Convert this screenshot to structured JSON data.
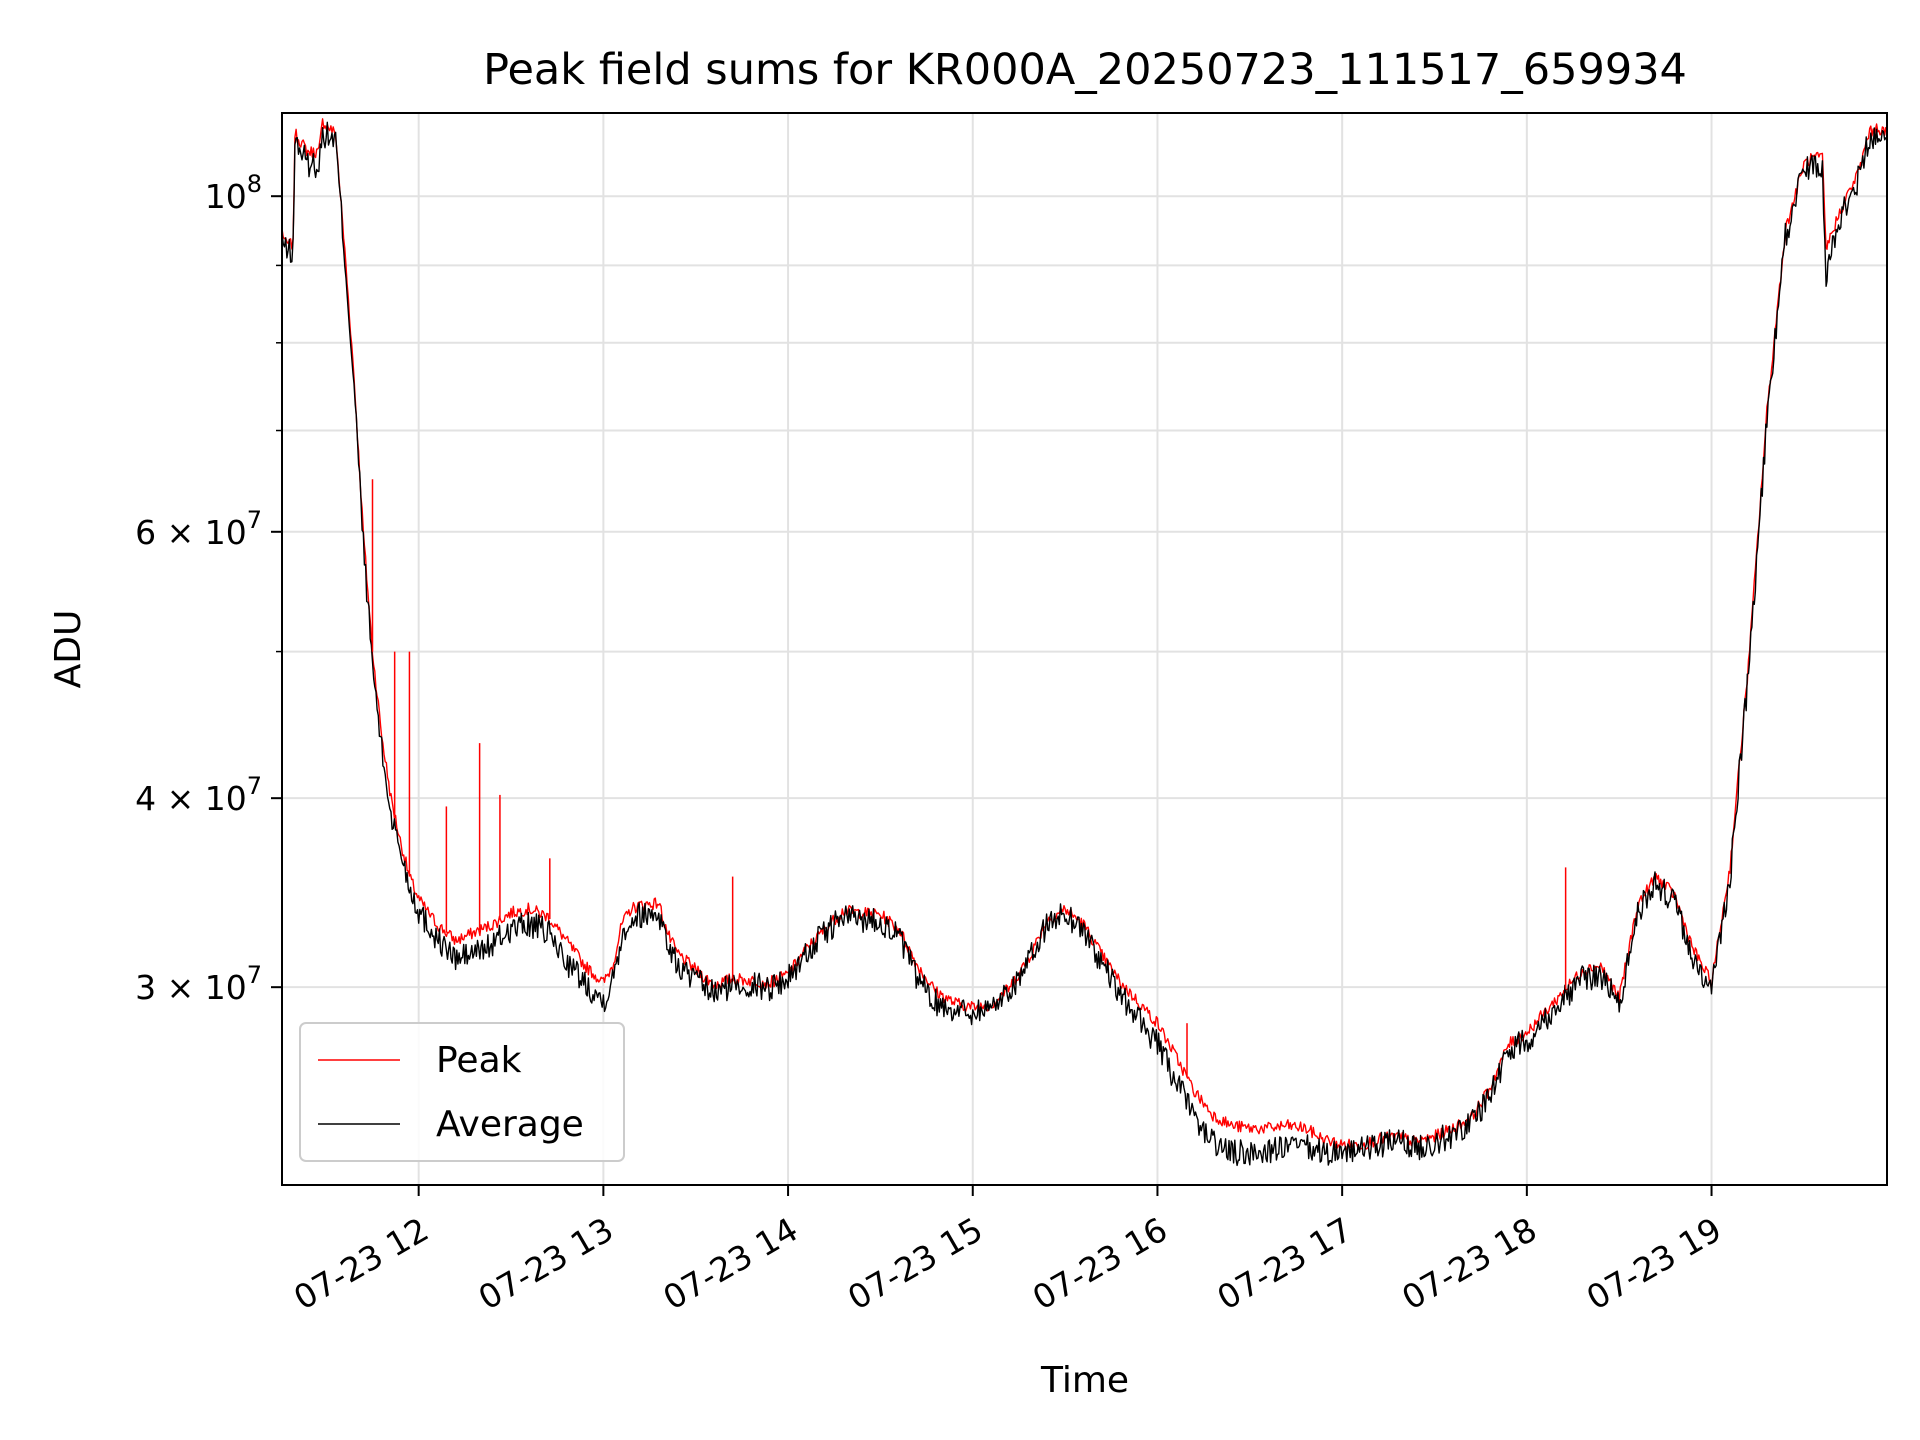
{
  "chart_data": {
    "type": "line",
    "title": "Peak field sums for KR000A_20250723_111517_659934",
    "xlabel": "Time",
    "ylabel": "ADU",
    "x_unit": "hours of day on 07-23",
    "xlim": [
      11.26,
      19.95
    ],
    "ylim": [
      22200000,
      113500000
    ],
    "yscale": "log",
    "grid": true,
    "legend_position": "lower-left",
    "x_ticks": [
      {
        "value": 12,
        "label": "07-23 12"
      },
      {
        "value": 13,
        "label": "07-23 13"
      },
      {
        "value": 14,
        "label": "07-23 14"
      },
      {
        "value": 15,
        "label": "07-23 15"
      },
      {
        "value": 16,
        "label": "07-23 16"
      },
      {
        "value": 17,
        "label": "07-23 17"
      },
      {
        "value": 18,
        "label": "07-23 18"
      },
      {
        "value": 19,
        "label": "07-23 19"
      }
    ],
    "y_major_ticks": [
      {
        "value": 30000000,
        "mantissa": "3 × 10",
        "exp": "7"
      },
      {
        "value": 40000000,
        "mantissa": "4 × 10",
        "exp": "7"
      },
      {
        "value": 60000000,
        "mantissa": "6 × 10",
        "exp": "7"
      },
      {
        "value": 100000000,
        "mantissa": "10",
        "exp": "8"
      }
    ],
    "y_minor_ticks": [
      50000000,
      70000000,
      80000000,
      90000000
    ],
    "series": [
      {
        "name": "Peak",
        "color": "#ff0000",
        "x": [
          11.26,
          11.28,
          11.32,
          11.33,
          11.4,
          11.46,
          11.48,
          11.55,
          11.6,
          11.65,
          11.7,
          11.75,
          11.8,
          11.85,
          11.9,
          11.95,
          12.0,
          12.1,
          12.2,
          12.3,
          12.4,
          12.5,
          12.6,
          12.7,
          12.8,
          12.9,
          13.0,
          13.05,
          13.1,
          13.15,
          13.2,
          13.3,
          13.35,
          13.4,
          13.5,
          13.6,
          13.7,
          13.8,
          13.9,
          14.0,
          14.1,
          14.2,
          14.3,
          14.4,
          14.5,
          14.6,
          14.7,
          14.8,
          14.9,
          15.0,
          15.1,
          15.2,
          15.3,
          15.4,
          15.5,
          15.6,
          15.7,
          15.8,
          15.9,
          16.0,
          16.1,
          16.2,
          16.3,
          16.4,
          16.5,
          16.6,
          16.7,
          16.8,
          16.9,
          17.0,
          17.1,
          17.2,
          17.3,
          17.4,
          17.5,
          17.6,
          17.7,
          17.8,
          17.9,
          18.0,
          18.1,
          18.2,
          18.3,
          18.4,
          18.5,
          18.6,
          18.7,
          18.8,
          18.9,
          19.0,
          19.1,
          19.2,
          19.3,
          19.4,
          19.5,
          19.55,
          19.6,
          19.62,
          19.63,
          19.7,
          19.8,
          19.85,
          19.9,
          19.95
        ],
        "values": [
          95000000,
          93000000,
          93000000,
          110000000,
          107000000,
          107000000,
          112000000,
          110000000,
          92000000,
          76000000,
          60000000,
          50000000,
          44000000,
          40000000,
          37500000,
          35500000,
          34300000,
          33000000,
          32200000,
          32600000,
          33000000,
          33600000,
          33800000,
          33400000,
          32200000,
          31000000,
          30200000,
          31000000,
          33000000,
          33800000,
          34000000,
          34100000,
          32500000,
          31600000,
          30800000,
          30100000,
          30400000,
          30300000,
          30200000,
          30600000,
          31800000,
          32800000,
          33700000,
          33600000,
          33500000,
          32800000,
          31000000,
          29800000,
          29300000,
          29100000,
          29200000,
          30000000,
          31300000,
          33200000,
          33800000,
          33000000,
          31500000,
          30200000,
          29300000,
          28400000,
          27000000,
          25600000,
          24700000,
          24300000,
          24200000,
          24200000,
          24300000,
          24200000,
          23800000,
          23600000,
          23600000,
          23800000,
          23900000,
          23700000,
          23900000,
          24200000,
          24600000,
          25700000,
          27500000,
          28000000,
          28900000,
          29800000,
          30800000,
          31000000,
          29500000,
          34000000,
          35500000,
          34500000,
          31800000,
          30200000,
          36000000,
          49000000,
          72000000,
          95000000,
          105000000,
          106000000,
          106000000,
          92000000,
          93000000,
          98000000,
          104000000,
          110000000,
          111000000,
          110000000
        ]
      },
      {
        "name": "Average",
        "color": "#000000",
        "x": [
          11.26,
          11.28,
          11.32,
          11.33,
          11.4,
          11.46,
          11.48,
          11.55,
          11.6,
          11.65,
          11.7,
          11.75,
          11.8,
          11.85,
          11.9,
          11.95,
          12.0,
          12.1,
          12.2,
          12.3,
          12.4,
          12.5,
          12.6,
          12.7,
          12.8,
          12.9,
          13.0,
          13.05,
          13.1,
          13.15,
          13.2,
          13.3,
          13.35,
          13.4,
          13.5,
          13.6,
          13.7,
          13.8,
          13.9,
          14.0,
          14.1,
          14.2,
          14.3,
          14.4,
          14.5,
          14.6,
          14.7,
          14.8,
          14.9,
          15.0,
          15.1,
          15.2,
          15.3,
          15.4,
          15.5,
          15.6,
          15.7,
          15.8,
          15.9,
          16.0,
          16.1,
          16.2,
          16.3,
          16.4,
          16.5,
          16.6,
          16.7,
          16.8,
          16.9,
          17.0,
          17.1,
          17.2,
          17.3,
          17.4,
          17.5,
          17.6,
          17.7,
          17.8,
          17.9,
          18.0,
          18.1,
          18.2,
          18.3,
          18.4,
          18.5,
          18.6,
          18.7,
          18.8,
          18.9,
          19.0,
          19.1,
          19.2,
          19.3,
          19.4,
          19.5,
          19.55,
          19.6,
          19.62,
          19.63,
          19.7,
          19.8,
          19.85,
          19.9,
          19.95
        ],
        "values": [
          94000000,
          92000000,
          92000000,
          109000000,
          105000000,
          105000000,
          110000000,
          109000000,
          91000000,
          75000000,
          59000000,
          49000000,
          43000000,
          39000000,
          37000000,
          35000000,
          33700000,
          32300000,
          31300000,
          31600000,
          32000000,
          32800000,
          33000000,
          32600000,
          31200000,
          30200000,
          29400000,
          30300000,
          32500000,
          33300000,
          33500000,
          33600000,
          32000000,
          31000000,
          30300000,
          29700000,
          30100000,
          30100000,
          30000000,
          30400000,
          31600000,
          32600000,
          33400000,
          33300000,
          33200000,
          32400000,
          30400000,
          29300000,
          29000000,
          28900000,
          29100000,
          29900000,
          31100000,
          33000000,
          33600000,
          32700000,
          31100000,
          29600000,
          28600000,
          27500000,
          26000000,
          24600000,
          23700000,
          23300000,
          23300000,
          23400000,
          23500000,
          23500000,
          23300000,
          23400000,
          23400000,
          23600000,
          23700000,
          23500000,
          23700000,
          24000000,
          24400000,
          25500000,
          27200000,
          27700000,
          28600000,
          29500000,
          30400000,
          30600000,
          29200000,
          33600000,
          35200000,
          34100000,
          31300000,
          29800000,
          35500000,
          48500000,
          71000000,
          94000000,
          104000000,
          105000000,
          105000000,
          87000000,
          91000000,
          97000000,
          103000000,
          109000000,
          110000000,
          109000000
        ]
      }
    ],
    "spikes": [
      {
        "x": 11.75,
        "value": 65000000
      },
      {
        "x": 11.87,
        "value": 50000000
      },
      {
        "x": 11.95,
        "value": 50000000
      },
      {
        "x": 12.15,
        "value": 39500000
      },
      {
        "x": 12.33,
        "value": 43500000
      },
      {
        "x": 12.44,
        "value": 40200000
      },
      {
        "x": 12.71,
        "value": 36500000
      },
      {
        "x": 13.7,
        "value": 35500000
      },
      {
        "x": 16.16,
        "value": 28400000
      },
      {
        "x": 18.21,
        "value": 36000000
      }
    ]
  }
}
